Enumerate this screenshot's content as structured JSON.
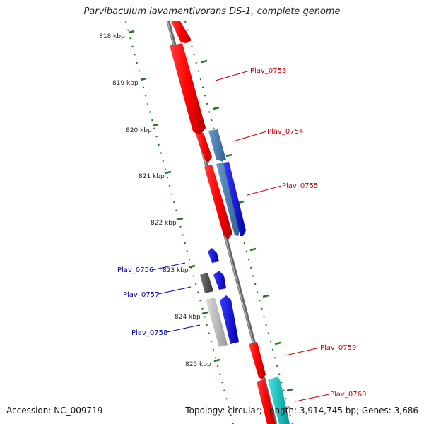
{
  "title": "Parvibaculum lavamentivorans DS-1, complete genome",
  "footer": {
    "accession": "Accession: NC_009719",
    "summary": "Topology: circular; Length: 3,914,745 bp; Genes: 3,686"
  },
  "ticks": [
    "818 kbp",
    "819 kbp",
    "820 kbp",
    "821 kbp",
    "822 kbp",
    "823 kbp",
    "824 kbp",
    "825 kbp"
  ],
  "genes": [
    {
      "name": "Plav_0753",
      "strand": "+",
      "color": "#ff0000"
    },
    {
      "name": "Plav_0754",
      "strand": "+",
      "color": "#4477aa"
    },
    {
      "name": "Plav_0755",
      "strand": "+",
      "color": "#0000ee"
    },
    {
      "name": "Plav_0756",
      "strand": "-",
      "color": "#0000ee"
    },
    {
      "name": "Plav_0757",
      "strand": "-",
      "color": "#555555"
    },
    {
      "name": "Plav_0758",
      "strand": "-",
      "color": "#bbbbbb"
    },
    {
      "name": "Plav_0759",
      "strand": "+",
      "color": "#ff0000"
    },
    {
      "name": "Plav_0760",
      "strand": "+",
      "color": "#00bbbb"
    }
  ],
  "colors": {
    "plus_label": "#cc0000",
    "minus_label": "#0000aa",
    "backbone": "#888888",
    "dots": "#227722"
  }
}
